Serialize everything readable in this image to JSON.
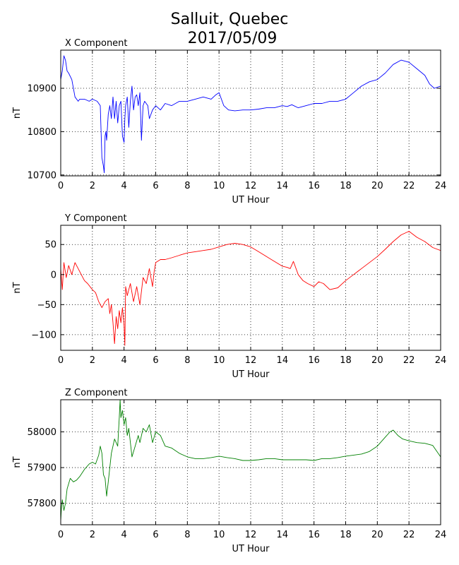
{
  "title_lines": [
    "Salluit, Quebec",
    "2017/05/09"
  ],
  "colors": {
    "x": "#0000ff",
    "y": "#ff0000",
    "z": "#008000",
    "grid": "#000000"
  },
  "chart_data": [
    {
      "type": "line",
      "title": "X Component",
      "xlabel": "UT Hour",
      "ylabel": "nT",
      "xlim": [
        0,
        24
      ],
      "ylim": [
        10698,
        10988
      ],
      "xticks": [
        0,
        2,
        4,
        6,
        8,
        10,
        12,
        14,
        16,
        18,
        20,
        22,
        24
      ],
      "yticks": [
        10700,
        10800,
        10900
      ],
      "grid": true,
      "series": [
        {
          "color": "#0000ff",
          "x": [
            0,
            0.1,
            0.2,
            0.3,
            0.4,
            0.5,
            0.7,
            0.9,
            1.1,
            1.2,
            1.5,
            1.8,
            2.0,
            2.3,
            2.5,
            2.6,
            2.7,
            2.75,
            2.8,
            2.85,
            2.9,
            3.0,
            3.1,
            3.2,
            3.3,
            3.4,
            3.5,
            3.6,
            3.7,
            3.8,
            3.9,
            4.0,
            4.05,
            4.1,
            4.2,
            4.3,
            4.4,
            4.5,
            4.6,
            4.7,
            4.8,
            4.9,
            5.0,
            5.1,
            5.2,
            5.3,
            5.5,
            5.6,
            5.8,
            6.0,
            6.3,
            6.6,
            7.0,
            7.5,
            8.0,
            8.5,
            9.0,
            9.5,
            9.8,
            10.0,
            10.3,
            10.6,
            11.0,
            11.5,
            12.0,
            12.5,
            13.0,
            13.5,
            14.0,
            14.3,
            14.6,
            15.0,
            15.5,
            16.0,
            16.5,
            17.0,
            17.5,
            18.0,
            18.5,
            19.0,
            19.5,
            20.0,
            20.5,
            21.0,
            21.5,
            22.0,
            22.5,
            23.0,
            23.3,
            23.6,
            24.0
          ],
          "y": [
            10920,
            10940,
            10975,
            10965,
            10940,
            10935,
            10920,
            10880,
            10870,
            10875,
            10875,
            10870,
            10875,
            10870,
            10860,
            10740,
            10720,
            10705,
            10790,
            10800,
            10780,
            10840,
            10860,
            10830,
            10880,
            10830,
            10870,
            10820,
            10860,
            10870,
            10790,
            10775,
            10830,
            10860,
            10880,
            10810,
            10870,
            10905,
            10850,
            10880,
            10885,
            10860,
            10890,
            10780,
            10860,
            10870,
            10860,
            10830,
            10850,
            10860,
            10850,
            10865,
            10860,
            10870,
            10870,
            10875,
            10880,
            10875,
            10885,
            10890,
            10860,
            10850,
            10848,
            10850,
            10850,
            10852,
            10855,
            10855,
            10860,
            10858,
            10862,
            10855,
            10860,
            10865,
            10865,
            10870,
            10870,
            10875,
            10890,
            10905,
            10915,
            10920,
            10935,
            10955,
            10965,
            10960,
            10945,
            10930,
            10910,
            10900,
            10905
          ]
        }
      ]
    },
    {
      "type": "line",
      "title": "Y Component",
      "xlabel": "UT Hour",
      "ylabel": "nT",
      "xlim": [
        0,
        24
      ],
      "ylim": [
        -126,
        82
      ],
      "xticks": [
        0,
        2,
        4,
        6,
        8,
        10,
        12,
        14,
        16,
        18,
        20,
        22,
        24
      ],
      "yticks": [
        -100,
        -50,
        0,
        50
      ],
      "grid": true,
      "series": [
        {
          "color": "#ff0000",
          "x": [
            0,
            0.1,
            0.2,
            0.35,
            0.5,
            0.7,
            0.9,
            1.1,
            1.3,
            1.5,
            1.7,
            2.0,
            2.2,
            2.4,
            2.6,
            2.8,
            3.0,
            3.1,
            3.2,
            3.3,
            3.4,
            3.5,
            3.6,
            3.7,
            3.8,
            3.9,
            4.0,
            4.05,
            4.1,
            4.2,
            4.4,
            4.6,
            4.8,
            5.0,
            5.2,
            5.4,
            5.6,
            5.8,
            5.9,
            6.0,
            6.3,
            6.6,
            7.0,
            7.5,
            8.0,
            8.5,
            9.0,
            9.5,
            10.0,
            10.5,
            11.0,
            11.5,
            12.0,
            12.5,
            13.0,
            13.5,
            14.0,
            14.3,
            14.5,
            14.7,
            15.0,
            15.3,
            15.6,
            16.0,
            16.3,
            16.6,
            17.0,
            17.5,
            18.0,
            18.5,
            19.0,
            19.5,
            20.0,
            20.5,
            21.0,
            21.5,
            22.0,
            22.5,
            23.0,
            23.5,
            24.0
          ],
          "y": [
            10,
            -25,
            20,
            -5,
            15,
            0,
            20,
            10,
            0,
            -10,
            -15,
            -25,
            -30,
            -45,
            -55,
            -45,
            -40,
            -65,
            -50,
            -80,
            -115,
            -70,
            -90,
            -60,
            -80,
            -55,
            -85,
            -118,
            -20,
            -35,
            -15,
            -45,
            -20,
            -50,
            -5,
            -15,
            10,
            -20,
            5,
            20,
            25,
            25,
            28,
            32,
            36,
            38,
            40,
            42,
            46,
            50,
            52,
            50,
            46,
            38,
            30,
            22,
            14,
            12,
            10,
            22,
            0,
            -10,
            -15,
            -20,
            -12,
            -15,
            -25,
            -22,
            -10,
            0,
            10,
            20,
            30,
            42,
            55,
            66,
            72,
            62,
            55,
            45,
            40
          ]
        }
      ]
    },
    {
      "type": "line",
      "title": "Z Component",
      "xlabel": "UT Hour",
      "ylabel": "nT",
      "xlim": [
        0,
        24
      ],
      "ylim": [
        57740,
        58090
      ],
      "xticks": [
        0,
        2,
        4,
        6,
        8,
        10,
        12,
        14,
        16,
        18,
        20,
        22,
        24
      ],
      "yticks": [
        57800,
        57900,
        58000
      ],
      "grid": true,
      "series": [
        {
          "color": "#008000",
          "x": [
            0,
            0.05,
            0.1,
            0.2,
            0.3,
            0.4,
            0.6,
            0.8,
            1.0,
            1.2,
            1.5,
            1.8,
            2.0,
            2.2,
            2.4,
            2.5,
            2.6,
            2.7,
            2.8,
            2.9,
            3.0,
            3.2,
            3.4,
            3.6,
            3.7,
            3.75,
            3.8,
            3.9,
            4.0,
            4.1,
            4.2,
            4.3,
            4.5,
            4.7,
            4.9,
            5.0,
            5.2,
            5.4,
            5.6,
            5.8,
            6.0,
            6.3,
            6.6,
            7.0,
            7.5,
            8.0,
            8.5,
            9.0,
            9.5,
            10.0,
            10.5,
            11.0,
            11.5,
            12.0,
            12.5,
            13.0,
            13.5,
            14.0,
            14.5,
            15.0,
            15.5,
            16.0,
            16.5,
            17.0,
            17.5,
            18.0,
            18.5,
            19.0,
            19.5,
            20.0,
            20.5,
            20.8,
            21.0,
            21.3,
            21.6,
            22.0,
            22.5,
            23.0,
            23.5,
            24.0
          ],
          "y": [
            57750,
            57790,
            57810,
            57780,
            57800,
            57840,
            57870,
            57860,
            57865,
            57875,
            57895,
            57910,
            57915,
            57910,
            57935,
            57960,
            57940,
            57880,
            57870,
            57820,
            57860,
            57940,
            57980,
            57960,
            58040,
            58090,
            58040,
            58060,
            58020,
            58040,
            57990,
            58010,
            57930,
            57960,
            57990,
            57970,
            58010,
            58000,
            58020,
            57970,
            58000,
            57990,
            57960,
            57955,
            57940,
            57930,
            57925,
            57925,
            57928,
            57932,
            57928,
            57925,
            57920,
            57920,
            57922,
            57925,
            57925,
            57922,
            57922,
            57922,
            57922,
            57920,
            57925,
            57925,
            57928,
            57932,
            57935,
            57938,
            57945,
            57960,
            57985,
            58000,
            58005,
            57990,
            57980,
            57975,
            57970,
            57968,
            57962,
            57930
          ]
        }
      ]
    }
  ]
}
